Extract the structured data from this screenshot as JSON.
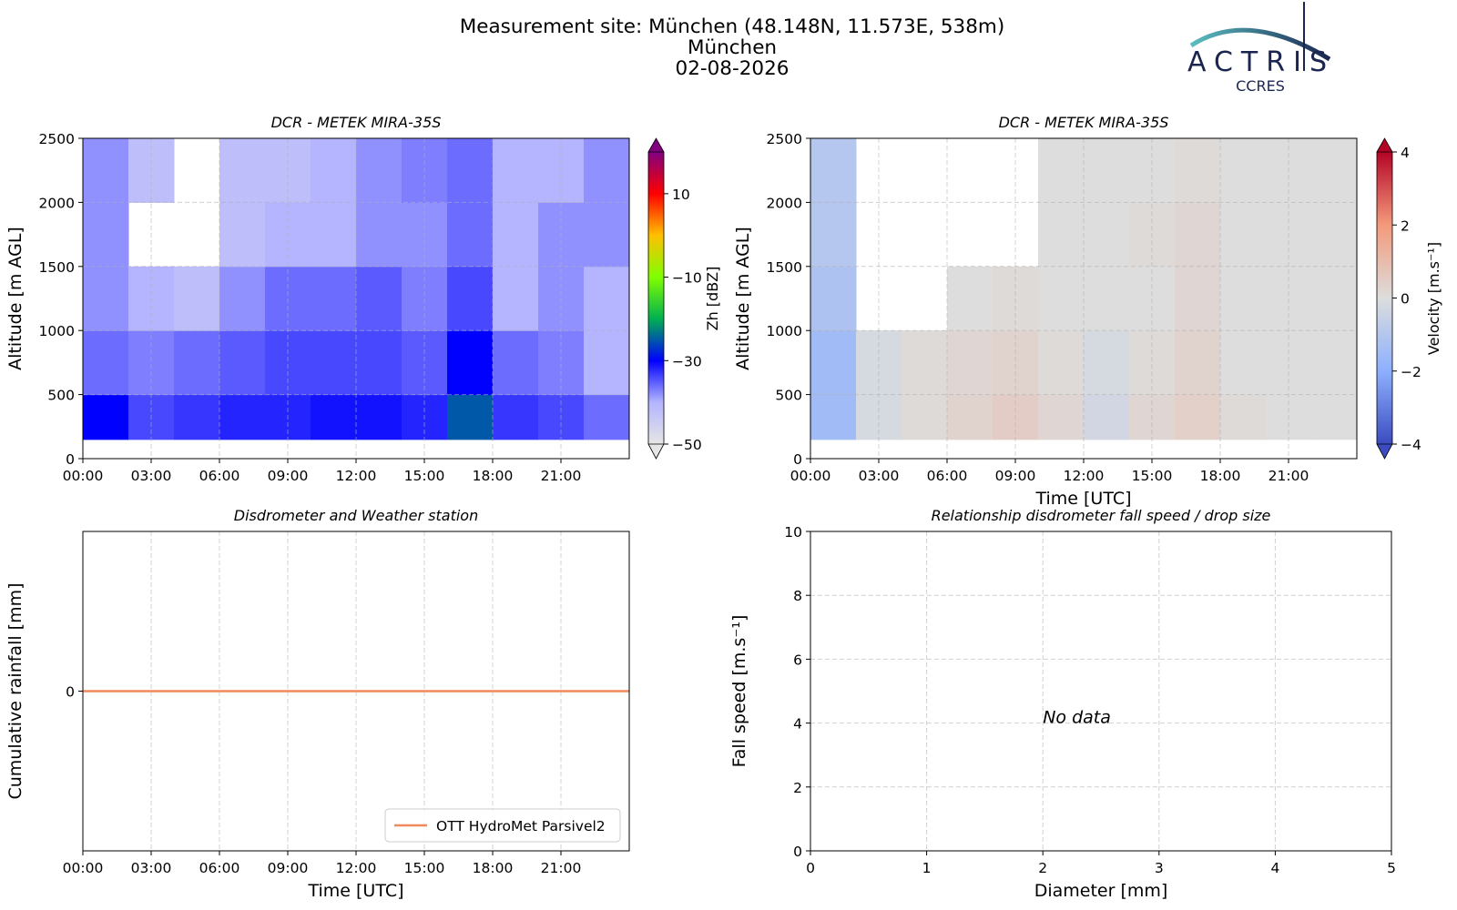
{
  "header": {
    "title": [
      "Measurement site: München (48.148N, 11.573E, 538m)",
      "München",
      "02-08-2026"
    ],
    "logo": {
      "text": "ACTRIS",
      "subtext": "CCRES"
    }
  },
  "chart_data": [
    {
      "type": "heatmap",
      "title": "DCR - METEK MIRA-35S",
      "ylabel": "Altitude [m AGL]",
      "xlim": [
        0,
        24
      ],
      "xticks": [
        {
          "value": 0,
          "label": "00:00"
        },
        {
          "value": 3,
          "label": "03:00"
        },
        {
          "value": 6,
          "label": "06:00"
        },
        {
          "value": 9,
          "label": "09:00"
        },
        {
          "value": 12,
          "label": "12:00"
        },
        {
          "value": 15,
          "label": "15:00"
        },
        {
          "value": 18,
          "label": "18:00"
        },
        {
          "value": 21,
          "label": "21:00"
        }
      ],
      "ylim": [
        0,
        2500
      ],
      "yticks": [
        0,
        500,
        1000,
        1500,
        2000,
        2500
      ],
      "grid": true,
      "xbins": [
        0,
        2,
        4,
        6,
        8,
        10,
        12,
        14,
        16,
        18,
        20,
        22,
        24
      ],
      "ybins": [
        150,
        500,
        1000,
        1500,
        2000,
        2500
      ],
      "values": [
        [
          -30,
          -34,
          -33,
          -32,
          -32,
          -31,
          -31,
          -32,
          -25,
          -33,
          -34,
          -36
        ],
        [
          -36,
          -37,
          -36,
          -35,
          -34,
          -34,
          -34,
          -35,
          -30,
          -36,
          -37,
          -40
        ],
        [
          -38,
          -40,
          -42,
          -38,
          -36,
          -36,
          -35,
          -37,
          -34,
          -40,
          -38,
          -40
        ],
        [
          -38,
          null,
          null,
          -42,
          -40,
          -40,
          -38,
          -38,
          -36,
          -40,
          -38,
          -38
        ],
        [
          -38,
          -42,
          null,
          -42,
          -42,
          -40,
          -38,
          -37,
          -36,
          -40,
          -40,
          -38
        ]
      ],
      "colorbar": {
        "label": "Zh [dBZ]",
        "lim": [
          -50,
          20
        ],
        "ticks": [
          {
            "value": -50,
            "label": "−50"
          },
          {
            "value": -30,
            "label": "−30"
          },
          {
            "value": -10,
            "label": "−10"
          },
          10
        ],
        "colors": [
          "#e6e6e6",
          "#b4b4ff",
          "#0000ff",
          "#00b050",
          "#80ff00",
          "#ffc000",
          "#ff0000",
          "#800080"
        ]
      }
    },
    {
      "type": "heatmap",
      "title": "DCR - METEK MIRA-35S",
      "ylabel": "Altitude [m AGL]",
      "xlabel": "Time [UTC]",
      "xlim": [
        0,
        24
      ],
      "xticks": [
        {
          "value": 0,
          "label": "00:00"
        },
        {
          "value": 3,
          "label": "03:00"
        },
        {
          "value": 6,
          "label": "06:00"
        },
        {
          "value": 9,
          "label": "09:00"
        },
        {
          "value": 12,
          "label": "12:00"
        },
        {
          "value": 15,
          "label": "15:00"
        },
        {
          "value": 18,
          "label": "18:00"
        },
        {
          "value": 21,
          "label": "21:00"
        }
      ],
      "ylim": [
        0,
        2500
      ],
      "yticks": [
        0,
        500,
        1000,
        1500,
        2000,
        2500
      ],
      "grid": true,
      "xbins": [
        0,
        2,
        4,
        6,
        8,
        10,
        12,
        14,
        16,
        18,
        20,
        22,
        24
      ],
      "ybins": [
        150,
        500,
        1000,
        1500,
        2000,
        2500
      ],
      "values": [
        [
          -1.5,
          -0.2,
          0.1,
          0.3,
          0.5,
          0.2,
          -0.3,
          0.2,
          0.4,
          0.1,
          0,
          0
        ],
        [
          -1.5,
          -0.2,
          0.1,
          0.2,
          0.3,
          0.1,
          -0.2,
          0.1,
          0.3,
          0,
          0,
          0
        ],
        [
          -1.2,
          null,
          null,
          0,
          0.1,
          0,
          0,
          0,
          0.2,
          0,
          0,
          0
        ],
        [
          -1,
          null,
          null,
          null,
          null,
          0,
          0,
          0.1,
          0.2,
          0,
          0,
          0
        ],
        [
          -1,
          null,
          null,
          null,
          null,
          0,
          0,
          0,
          0.1,
          0,
          0,
          0
        ]
      ],
      "colorbar": {
        "label": "Velocity [m.s⁻¹]",
        "lim": [
          -4,
          4
        ],
        "ticks": [
          {
            "value": -4,
            "label": "−4"
          },
          {
            "value": -2,
            "label": "−2"
          },
          0,
          2,
          4
        ],
        "colors": [
          "#3b4cc0",
          "#8db0fe",
          "#dddddd",
          "#f49a7b",
          "#b40426"
        ]
      }
    },
    {
      "type": "line",
      "title": "Disdrometer and Weather station",
      "xlabel": "Time [UTC]",
      "ylabel": "Cumulative rainfall [mm]",
      "xlim": [
        0,
        24
      ],
      "xticks": [
        {
          "value": 0,
          "label": "00:00"
        },
        {
          "value": 3,
          "label": "03:00"
        },
        {
          "value": 6,
          "label": "06:00"
        },
        {
          "value": 9,
          "label": "09:00"
        },
        {
          "value": 12,
          "label": "12:00"
        },
        {
          "value": 15,
          "label": "15:00"
        },
        {
          "value": 18,
          "label": "18:00"
        },
        {
          "value": 21,
          "label": "21:00"
        }
      ],
      "ylim": [
        -0.055,
        0.055
      ],
      "yticks": [
        0
      ],
      "grid": true,
      "legend": "lower right",
      "x": [
        0,
        24
      ],
      "series": [
        {
          "name": "OTT HydroMet Parsivel2",
          "color": "#f08a5d",
          "values": [
            0,
            0
          ]
        }
      ]
    },
    {
      "type": "scatter",
      "title": "Relationship disdrometer fall speed / drop size",
      "xlabel": "Diameter [mm]",
      "ylabel": "Fall speed [m.s⁻¹]",
      "xlim": [
        0,
        5
      ],
      "xticks": [
        0,
        1,
        2,
        3,
        4,
        5
      ],
      "ylim": [
        0,
        10
      ],
      "yticks": [
        0,
        2,
        4,
        6,
        8,
        10
      ],
      "grid": true,
      "series": [],
      "annotation": "No data"
    }
  ]
}
